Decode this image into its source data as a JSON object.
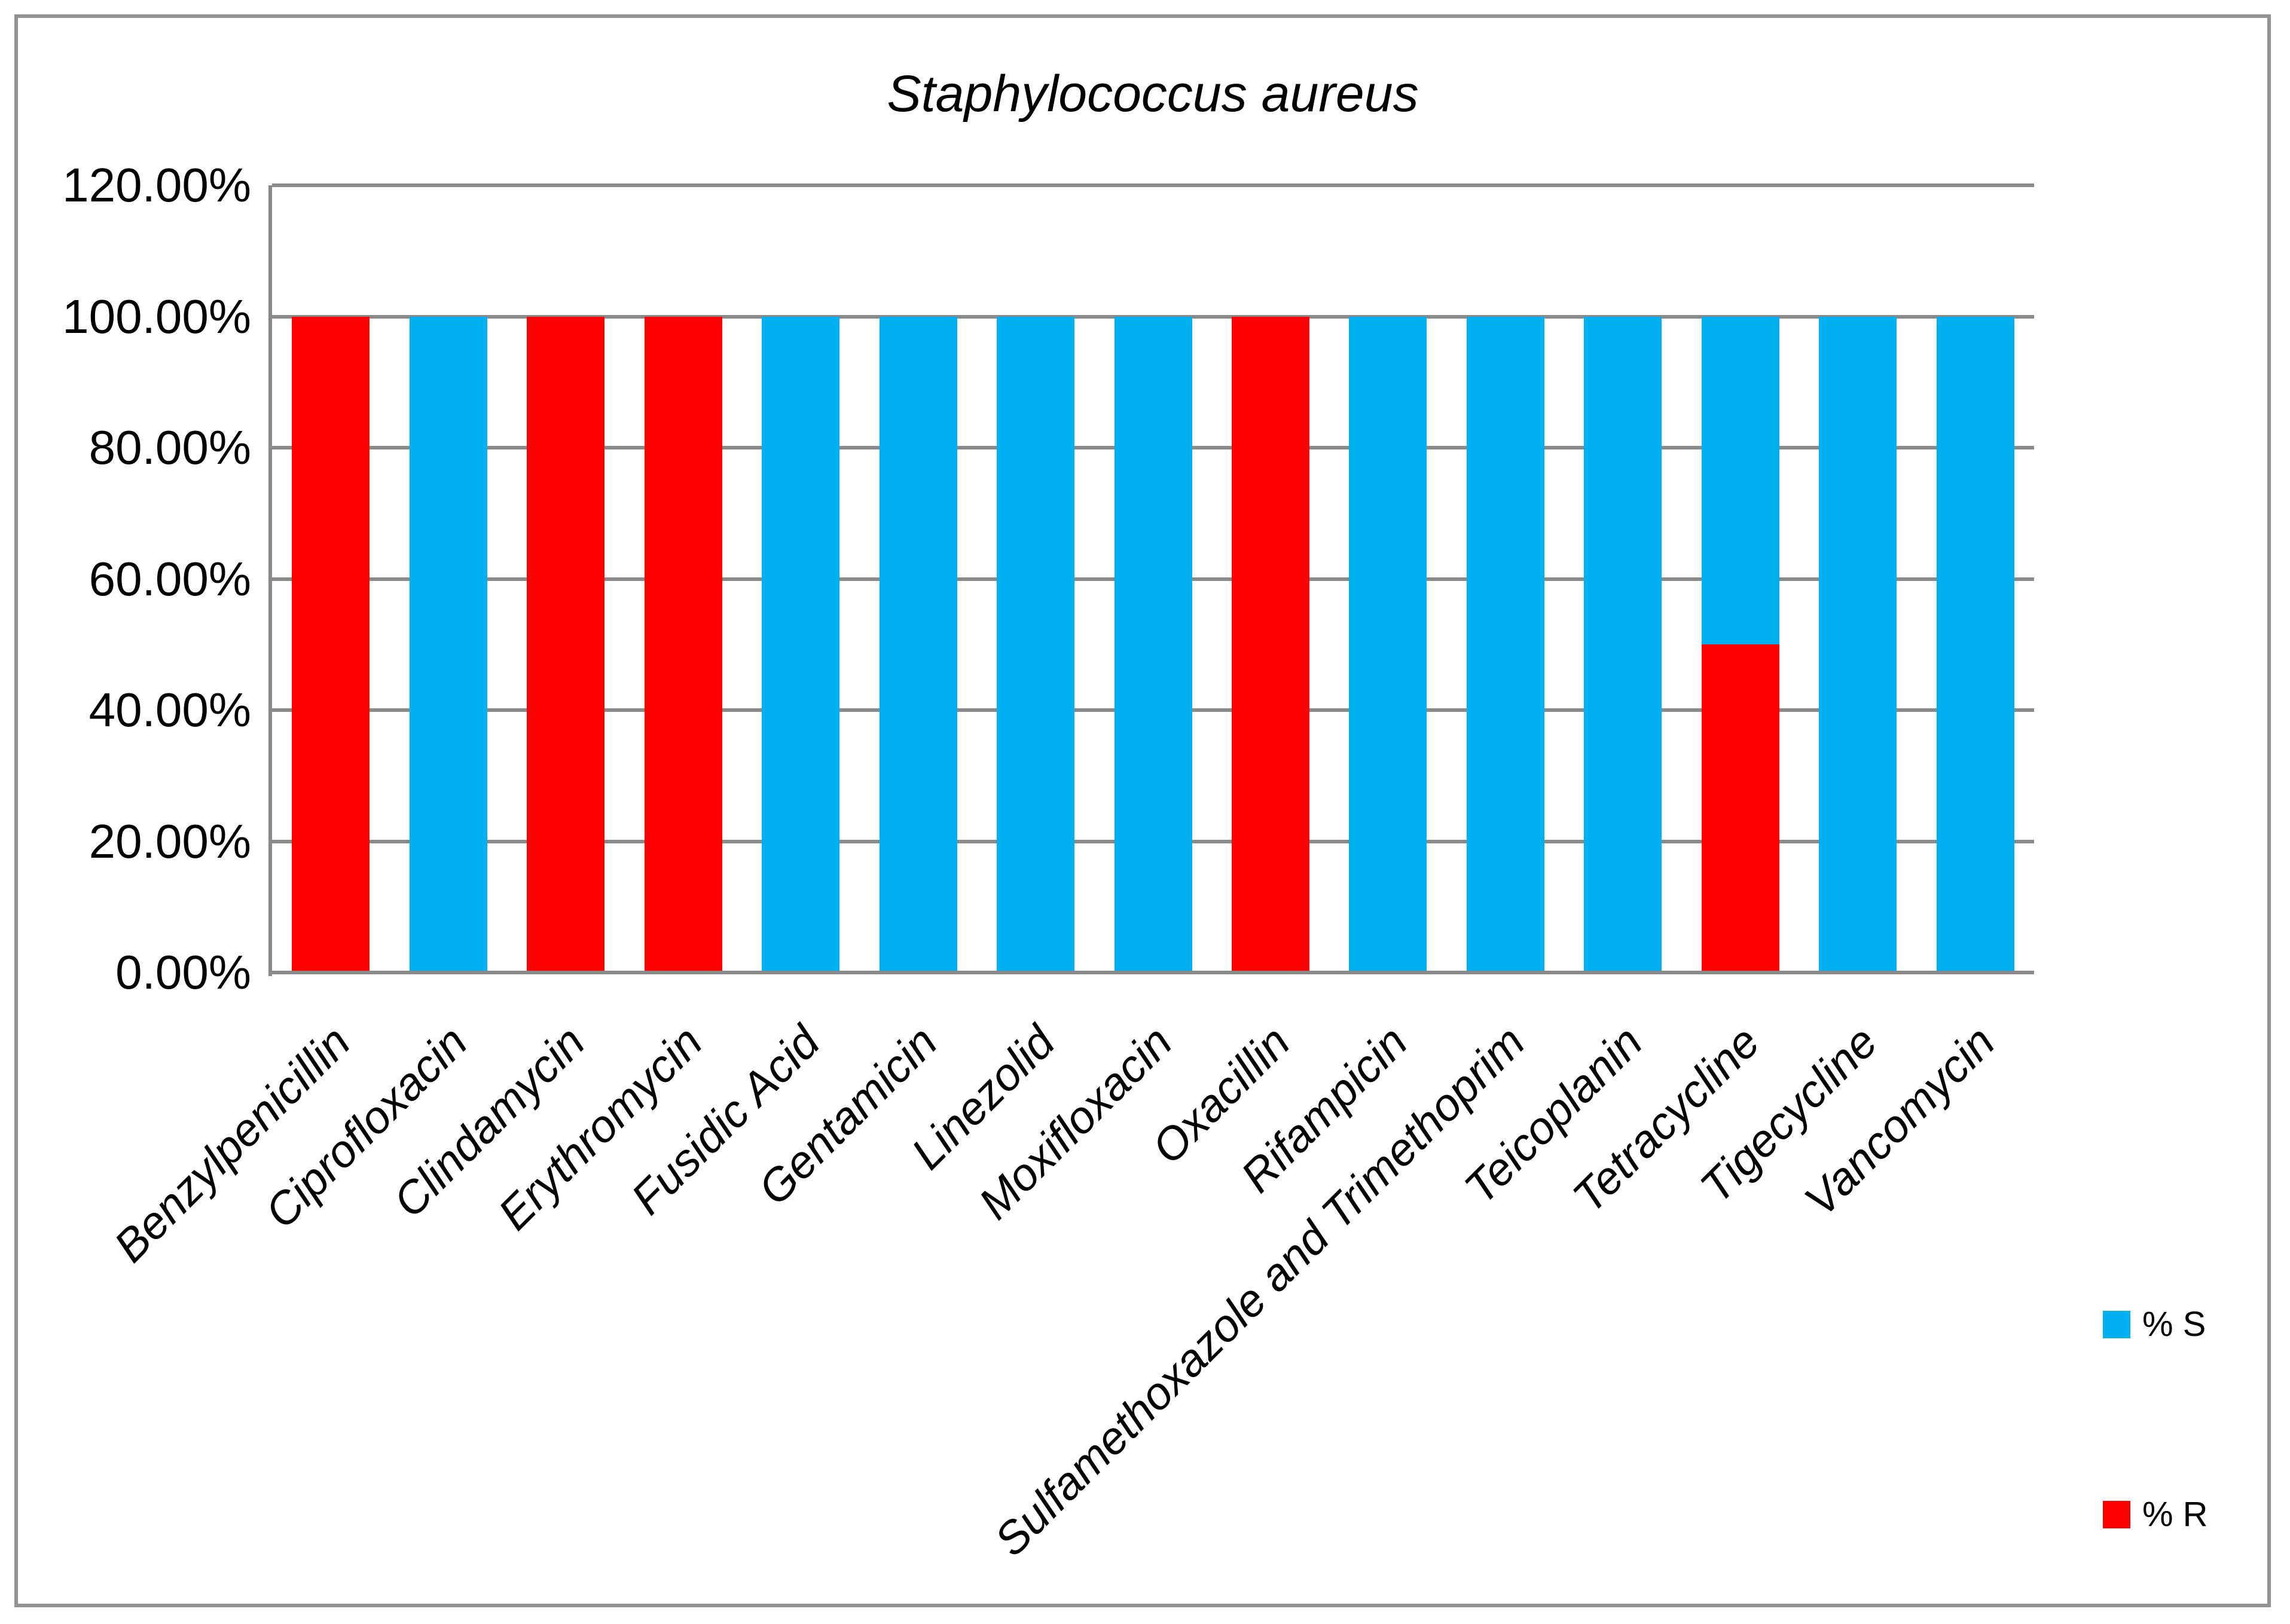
{
  "title": "Staphylococcus aureus",
  "colors": {
    "susceptible_blue": "#00B0F0",
    "resistant_red": "#FF0000",
    "gridline_gray": "#8A8A8A",
    "axis_gray": "#8A8A8A",
    "frame_gray": "#929292",
    "text_black": "#000000",
    "background": "#FFFFFF"
  },
  "y_axis": {
    "tick_labels": [
      "120.00%",
      "100.00%",
      "80.00%",
      "60.00%",
      "40.00%",
      "20.00%",
      "0.00%"
    ],
    "tick_values": [
      120,
      100,
      80,
      60,
      40,
      20,
      0
    ]
  },
  "legend": {
    "items": [
      {
        "label": "% S",
        "color": "#00B0F0"
      },
      {
        "label": "% R",
        "color": "#FF0000"
      }
    ]
  },
  "chart_data": {
    "type": "bar",
    "stacked": true,
    "title": "Staphylococcus aureus",
    "xlabel": "",
    "ylabel": "",
    "ylim": [
      0,
      120
    ],
    "ytick_step": 20,
    "grid": true,
    "legend_position": "bottom-right",
    "categories": [
      "Benzylpenicillin",
      "Ciprofloxacin",
      "Clindamycin",
      "Erythromycin",
      "Fusidic Acid",
      "Gentamicin",
      "Linezolid",
      "Moxifloxacin",
      "Oxacillin",
      "Rifampicin",
      "Sulfamethoxazole and Trimethoprim",
      "Teicoplanin",
      "Tetracycline",
      "Tigecycline",
      "Vancomycin"
    ],
    "series": [
      {
        "name": "% S",
        "color": "#00B0F0",
        "values": [
          0,
          100,
          0,
          0,
          100,
          100,
          100,
          100,
          0,
          100,
          100,
          100,
          50,
          100,
          100
        ]
      },
      {
        "name": "% R",
        "color": "#FF0000",
        "values": [
          100,
          0,
          100,
          100,
          0,
          0,
          0,
          0,
          100,
          0,
          0,
          0,
          50,
          0,
          0
        ]
      }
    ]
  }
}
